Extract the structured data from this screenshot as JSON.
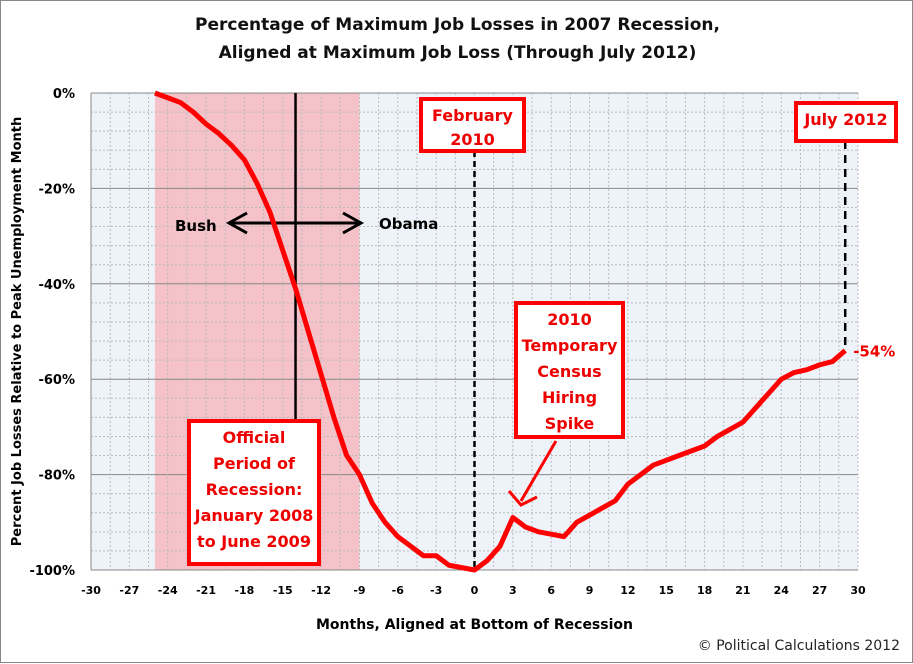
{
  "chart_data": {
    "type": "line",
    "title": [
      "Percentage of Maximum Job Losses in 2007 Recession,",
      "Aligned at Maximum Job Loss (Through July 2012)"
    ],
    "xlabel": "Months, Aligned at Bottom of Recession",
    "ylabel": "Percent Job Losses Relative to Peak Unemployment Month",
    "xlim": [
      -30,
      30
    ],
    "ylim": [
      -100,
      0
    ],
    "xticks": [
      -30,
      -27,
      -24,
      -21,
      -18,
      -15,
      -12,
      -9,
      -6,
      -3,
      0,
      3,
      6,
      9,
      12,
      15,
      18,
      21,
      24,
      27,
      30
    ],
    "yticks": [
      0,
      -20,
      -40,
      -60,
      -80,
      -100
    ],
    "ytick_labels": [
      "0%",
      "-20%",
      "-40%",
      "-60%",
      "-80%",
      "-100%"
    ],
    "grid": true,
    "line_color": "#ff0000",
    "x": [
      -25,
      -24,
      -23,
      -22,
      -21,
      -20,
      -19,
      -18,
      -17,
      -16,
      -15,
      -14,
      -13,
      -12,
      -11,
      -10,
      -9,
      -8,
      -7,
      -6,
      -5,
      -4,
      -3,
      -2,
      -1,
      0,
      1,
      2,
      3,
      4,
      5,
      6,
      7,
      8,
      9,
      10,
      11,
      12,
      13,
      14,
      15,
      16,
      17,
      18,
      19,
      20,
      21,
      22,
      23,
      24,
      25,
      26,
      27,
      28,
      29
    ],
    "y": [
      0,
      -1,
      -2,
      -4,
      -6.5,
      -8.5,
      -11,
      -14,
      -19,
      -25,
      -33,
      -41,
      -50,
      -59,
      -68,
      -76,
      -80,
      -86,
      -90,
      -93,
      -95,
      -97,
      -97,
      -99,
      -99.5,
      -100,
      -98,
      -95,
      -89,
      -91,
      -92,
      -92.5,
      -93,
      -90,
      -88.5,
      -87,
      -85.5,
      -82,
      -80,
      -78,
      -77,
      -76,
      -75,
      -74,
      -72,
      -70.5,
      -69,
      -66,
      -63,
      -60,
      -58.6,
      -58,
      -57,
      -56.3,
      -54
    ],
    "recession_shading": {
      "from": -25,
      "to": -9,
      "color": "#f4c2c8"
    },
    "annotations": {
      "official": [
        "Official",
        "Period of",
        "Recession:",
        "January 2008",
        "to June 2009"
      ],
      "feb2010": [
        "February",
        "2010"
      ],
      "july2012": [
        "July 2012"
      ],
      "census": [
        "2010",
        "Temporary",
        "Census",
        "Hiring",
        "Spike"
      ],
      "bush": "Bush",
      "obama": "Obama",
      "end_value": "-54%",
      "presidency_change_month": -14,
      "feb2010_month": 0,
      "july2012_month": 29
    }
  },
  "copyright": "© Political Calculations 2012"
}
